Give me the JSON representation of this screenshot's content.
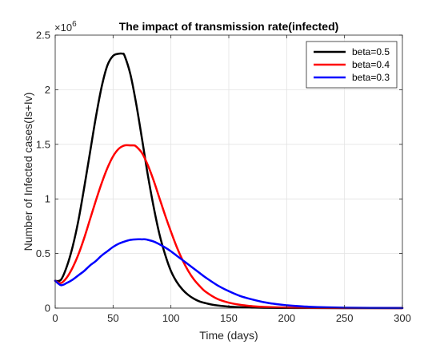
{
  "chart_data": {
    "type": "line",
    "title": "The impact of transmission rate(infected)",
    "xlabel": "Time (days)",
    "ylabel": "Number of Infected cases(Is+Iv)",
    "y_exponent_base": "×10",
    "y_exponent_power": "6",
    "xlim": [
      0,
      300
    ],
    "ylim": [
      0,
      2.5
    ],
    "x_ticks": [
      0,
      50,
      100,
      150,
      200,
      250,
      300
    ],
    "x_tick_labels": [
      "0",
      "50",
      "100",
      "150",
      "200",
      "250",
      "300"
    ],
    "y_ticks": [
      0,
      0.5,
      1,
      1.5,
      2,
      2.5
    ],
    "y_tick_labels": [
      "0",
      "0.5",
      "1",
      "1.5",
      "2",
      "2.5"
    ],
    "grid": true,
    "legend_position": "top-right",
    "series": [
      {
        "name": "beta=0.5",
        "color": "#000000",
        "x": [
          0,
          5,
          10,
          15,
          20,
          25,
          30,
          35,
          40,
          45,
          50,
          55,
          58,
          60,
          65,
          70,
          75,
          80,
          85,
          90,
          95,
          100,
          105,
          110,
          115,
          120,
          125,
          130,
          135,
          140,
          150,
          160,
          170,
          180,
          200,
          220,
          250,
          300
        ],
        "y": [
          0.25,
          0.26,
          0.38,
          0.56,
          0.8,
          1.1,
          1.42,
          1.74,
          2.02,
          2.22,
          2.31,
          2.33,
          2.33,
          2.31,
          2.14,
          1.87,
          1.55,
          1.22,
          0.93,
          0.68,
          0.49,
          0.34,
          0.24,
          0.17,
          0.12,
          0.085,
          0.06,
          0.045,
          0.033,
          0.025,
          0.014,
          0.008,
          0.005,
          0.003,
          0.0015,
          0.0008,
          0.0004,
          0.0001
        ]
      },
      {
        "name": "beta=0.4",
        "color": "#ff0000",
        "x": [
          0,
          5,
          10,
          15,
          20,
          25,
          30,
          35,
          40,
          45,
          50,
          55,
          60,
          65,
          68,
          70,
          75,
          80,
          85,
          90,
          95,
          100,
          105,
          110,
          115,
          120,
          125,
          130,
          140,
          150,
          160,
          170,
          180,
          200,
          220,
          250,
          300
        ],
        "y": [
          0.25,
          0.23,
          0.28,
          0.37,
          0.49,
          0.64,
          0.81,
          0.98,
          1.14,
          1.28,
          1.39,
          1.46,
          1.49,
          1.49,
          1.49,
          1.48,
          1.42,
          1.31,
          1.17,
          1.01,
          0.85,
          0.7,
          0.56,
          0.44,
          0.34,
          0.26,
          0.2,
          0.15,
          0.085,
          0.05,
          0.03,
          0.018,
          0.011,
          0.005,
          0.002,
          0.0008,
          0.0002
        ]
      },
      {
        "name": "beta=0.3",
        "color": "#0000ff",
        "x": [
          0,
          5,
          10,
          15,
          20,
          25,
          30,
          35,
          40,
          45,
          50,
          55,
          60,
          65,
          70,
          75,
          78,
          80,
          85,
          90,
          95,
          100,
          105,
          110,
          115,
          120,
          125,
          130,
          140,
          150,
          160,
          170,
          180,
          190,
          200,
          220,
          250,
          300
        ],
        "y": [
          0.25,
          0.21,
          0.23,
          0.26,
          0.3,
          0.34,
          0.39,
          0.43,
          0.48,
          0.52,
          0.56,
          0.59,
          0.61,
          0.625,
          0.63,
          0.63,
          0.63,
          0.625,
          0.61,
          0.585,
          0.555,
          0.52,
          0.48,
          0.44,
          0.4,
          0.36,
          0.32,
          0.28,
          0.21,
          0.155,
          0.11,
          0.08,
          0.055,
          0.038,
          0.026,
          0.012,
          0.004,
          0.0005
        ]
      }
    ]
  }
}
